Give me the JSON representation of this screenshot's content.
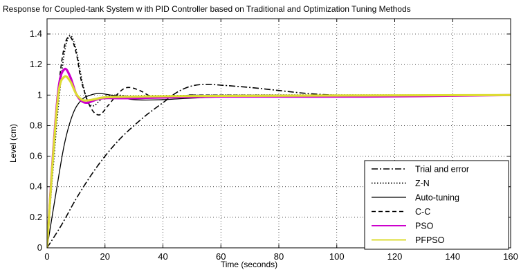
{
  "chart_data": {
    "type": "line",
    "title": "Response for Coupled-tank System w ith PID Controller based on Traditional and Optimization Tuning Methods",
    "xlabel": "Time (seconds)",
    "ylabel": "Level (cm)",
    "xlim": [
      0,
      160
    ],
    "ylim": [
      0,
      1.5
    ],
    "xticks": [
      0,
      20,
      40,
      60,
      80,
      100,
      120,
      140,
      160
    ],
    "yticks": [
      0,
      0.2,
      0.4,
      0.6,
      0.8,
      1,
      1.2,
      1.4
    ],
    "xtick_labels": [
      "0",
      "20",
      "40",
      "60",
      "80",
      "100",
      "120",
      "140",
      "160"
    ],
    "ytick_labels": [
      "0",
      "0.2",
      "0.4",
      "0.6",
      "0.8",
      "1",
      "1.2",
      "1.4"
    ],
    "grid": true,
    "legend_position": "bottom-right",
    "series": [
      {
        "name": "Trial and error",
        "color": "#000000",
        "dash": "dashdot",
        "width": 1.6,
        "points": [
          [
            0,
            0
          ],
          [
            5,
            0.15
          ],
          [
            10,
            0.32
          ],
          [
            15,
            0.47
          ],
          [
            20,
            0.6
          ],
          [
            25,
            0.71
          ],
          [
            30,
            0.8
          ],
          [
            35,
            0.88
          ],
          [
            40,
            0.95
          ],
          [
            45,
            1.02
          ],
          [
            50,
            1.06
          ],
          [
            55,
            1.07
          ],
          [
            60,
            1.065
          ],
          [
            70,
            1.05
          ],
          [
            80,
            1.03
          ],
          [
            90,
            1.01
          ],
          [
            100,
            1.0
          ],
          [
            110,
            0.998
          ],
          [
            160,
            1.0
          ]
        ]
      },
      {
        "name": "Z-N",
        "color": "#000000",
        "dash": "dotted",
        "width": 1.8,
        "points": [
          [
            0,
            0
          ],
          [
            2,
            0.5
          ],
          [
            4,
            0.95
          ],
          [
            6,
            1.28
          ],
          [
            8,
            1.39
          ],
          [
            10,
            1.3
          ],
          [
            12,
            1.1
          ],
          [
            14,
            0.96
          ],
          [
            16,
            0.93
          ],
          [
            18,
            0.96
          ],
          [
            20,
            0.99
          ],
          [
            24,
            1.0
          ],
          [
            30,
            0.99
          ],
          [
            40,
            0.99
          ],
          [
            60,
            1.0
          ],
          [
            160,
            1.0
          ]
        ]
      },
      {
        "name": "Auto-tuning",
        "color": "#000000",
        "dash": "solid",
        "width": 1.3,
        "points": [
          [
            0,
            0
          ],
          [
            3,
            0.35
          ],
          [
            6,
            0.68
          ],
          [
            9,
            0.88
          ],
          [
            12,
            0.97
          ],
          [
            15,
            1.0
          ],
          [
            18,
            1.01
          ],
          [
            22,
            1.0
          ],
          [
            30,
            0.97
          ],
          [
            40,
            0.97
          ],
          [
            50,
            0.98
          ],
          [
            70,
            0.99
          ],
          [
            160,
            1.0
          ]
        ]
      },
      {
        "name": "C-C",
        "color": "#000000",
        "dash": "dashed",
        "width": 1.6,
        "points": [
          [
            0,
            0
          ],
          [
            2,
            0.55
          ],
          [
            4,
            1.05
          ],
          [
            6,
            1.32
          ],
          [
            8,
            1.38
          ],
          [
            10,
            1.28
          ],
          [
            12,
            1.08
          ],
          [
            15,
            0.92
          ],
          [
            18,
            0.87
          ],
          [
            21,
            0.93
          ],
          [
            25,
            1.02
          ],
          [
            28,
            1.05
          ],
          [
            32,
            1.03
          ],
          [
            36,
            0.99
          ],
          [
            40,
            0.98
          ],
          [
            45,
            0.99
          ],
          [
            50,
            1.0
          ],
          [
            60,
            1.0
          ],
          [
            160,
            1.0
          ]
        ]
      },
      {
        "name": "PSO",
        "color": "#cc00cc",
        "dash": "solid",
        "width": 3.2,
        "points": [
          [
            0,
            0
          ],
          [
            2,
            0.6
          ],
          [
            4,
            1.05
          ],
          [
            6,
            1.17
          ],
          [
            8,
            1.12
          ],
          [
            10,
            1.01
          ],
          [
            12,
            0.96
          ],
          [
            14,
            0.95
          ],
          [
            17,
            0.97
          ],
          [
            20,
            0.98
          ],
          [
            30,
            0.98
          ],
          [
            60,
            0.99
          ],
          [
            110,
            0.99
          ],
          [
            160,
            1.0
          ]
        ]
      },
      {
        "name": "PFPSO",
        "color": "#dddd33",
        "dash": "solid",
        "width": 3.2,
        "points": [
          [
            0,
            0
          ],
          [
            2,
            0.58
          ],
          [
            4,
            1.02
          ],
          [
            6,
            1.12
          ],
          [
            8,
            1.09
          ],
          [
            10,
            1.01
          ],
          [
            12,
            0.97
          ],
          [
            14,
            0.965
          ],
          [
            17,
            0.975
          ],
          [
            20,
            0.985
          ],
          [
            30,
            0.99
          ],
          [
            60,
            0.995
          ],
          [
            160,
            1.0
          ]
        ]
      }
    ]
  }
}
